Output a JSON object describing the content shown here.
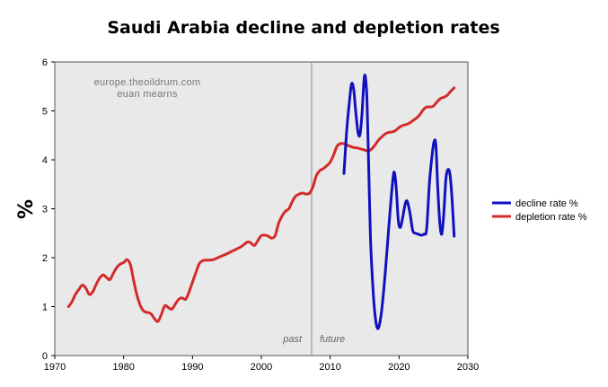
{
  "chart_data": {
    "type": "line",
    "title": "Saudi Arabia decline and depletion rates",
    "ylabel": "%",
    "xlabel": "",
    "xlim": [
      1970,
      2030
    ],
    "ylim": [
      0,
      6
    ],
    "xticks": [
      1970,
      1980,
      1990,
      2000,
      2010,
      2020,
      2030
    ],
    "yticks": [
      0,
      1,
      2,
      3,
      4,
      5,
      6
    ],
    "grid": false,
    "legend_position": "right",
    "divider_year": 2007.3,
    "annotations": {
      "source_line1": "europe.theoildrum.com",
      "source_line2": "euan mearns",
      "past": "past",
      "future": "future"
    },
    "series": [
      {
        "name": "decline rate %",
        "color": "#1010c0",
        "points": [
          [
            2012.0,
            3.72
          ],
          [
            2012.4,
            4.6
          ],
          [
            2012.8,
            5.2
          ],
          [
            2013.1,
            5.55
          ],
          [
            2013.4,
            5.45
          ],
          [
            2013.7,
            5.0
          ],
          [
            2014.0,
            4.6
          ],
          [
            2014.3,
            4.5
          ],
          [
            2014.6,
            4.9
          ],
          [
            2014.9,
            5.6
          ],
          [
            2015.1,
            5.7
          ],
          [
            2015.35,
            5.2
          ],
          [
            2015.6,
            3.8
          ],
          [
            2015.85,
            2.4
          ],
          [
            2016.2,
            1.4
          ],
          [
            2016.5,
            0.85
          ],
          [
            2016.8,
            0.58
          ],
          [
            2017.1,
            0.6
          ],
          [
            2017.5,
            0.95
          ],
          [
            2018.0,
            1.7
          ],
          [
            2018.5,
            2.6
          ],
          [
            2019.0,
            3.45
          ],
          [
            2019.3,
            3.75
          ],
          [
            2019.6,
            3.4
          ],
          [
            2019.9,
            2.75
          ],
          [
            2020.2,
            2.62
          ],
          [
            2020.5,
            2.8
          ],
          [
            2020.9,
            3.1
          ],
          [
            2021.2,
            3.15
          ],
          [
            2021.6,
            2.9
          ],
          [
            2022.0,
            2.55
          ],
          [
            2022.4,
            2.5
          ],
          [
            2022.8,
            2.48
          ],
          [
            2023.2,
            2.46
          ],
          [
            2023.6,
            2.48
          ],
          [
            2024.0,
            2.58
          ],
          [
            2024.4,
            3.5
          ],
          [
            2024.8,
            4.1
          ],
          [
            2025.1,
            4.38
          ],
          [
            2025.35,
            4.3
          ],
          [
            2025.6,
            3.5
          ],
          [
            2025.9,
            2.75
          ],
          [
            2026.2,
            2.48
          ],
          [
            2026.5,
            2.9
          ],
          [
            2026.8,
            3.6
          ],
          [
            2027.1,
            3.8
          ],
          [
            2027.4,
            3.7
          ],
          [
            2027.7,
            3.2
          ],
          [
            2028.0,
            2.44
          ]
        ]
      },
      {
        "name": "depletion rate %",
        "color": "#d42a2a",
        "points": [
          [
            1972.0,
            1.0
          ],
          [
            1972.5,
            1.1
          ],
          [
            1973.0,
            1.25
          ],
          [
            1973.5,
            1.35
          ],
          [
            1974.0,
            1.44
          ],
          [
            1974.5,
            1.38
          ],
          [
            1975.0,
            1.25
          ],
          [
            1975.5,
            1.3
          ],
          [
            1976.0,
            1.45
          ],
          [
            1976.5,
            1.58
          ],
          [
            1977.0,
            1.65
          ],
          [
            1977.5,
            1.6
          ],
          [
            1978.0,
            1.55
          ],
          [
            1978.5,
            1.68
          ],
          [
            1979.0,
            1.8
          ],
          [
            1979.5,
            1.87
          ],
          [
            1980.0,
            1.9
          ],
          [
            1980.5,
            1.96
          ],
          [
            1981.0,
            1.85
          ],
          [
            1981.5,
            1.5
          ],
          [
            1982.0,
            1.2
          ],
          [
            1982.5,
            1.0
          ],
          [
            1983.0,
            0.9
          ],
          [
            1983.5,
            0.88
          ],
          [
            1984.0,
            0.85
          ],
          [
            1984.5,
            0.75
          ],
          [
            1985.0,
            0.7
          ],
          [
            1985.5,
            0.85
          ],
          [
            1986.0,
            1.02
          ],
          [
            1986.5,
            0.98
          ],
          [
            1987.0,
            0.95
          ],
          [
            1987.5,
            1.05
          ],
          [
            1988.0,
            1.15
          ],
          [
            1988.5,
            1.18
          ],
          [
            1989.0,
            1.15
          ],
          [
            1989.5,
            1.3
          ],
          [
            1990.0,
            1.5
          ],
          [
            1990.5,
            1.7
          ],
          [
            1991.0,
            1.88
          ],
          [
            1991.5,
            1.94
          ],
          [
            1992.0,
            1.95
          ],
          [
            1993.0,
            1.96
          ],
          [
            1994.0,
            2.02
          ],
          [
            1995.0,
            2.08
          ],
          [
            1996.0,
            2.15
          ],
          [
            1997.0,
            2.22
          ],
          [
            1998.0,
            2.32
          ],
          [
            1998.5,
            2.3
          ],
          [
            1999.0,
            2.25
          ],
          [
            1999.5,
            2.35
          ],
          [
            2000.0,
            2.45
          ],
          [
            2000.5,
            2.46
          ],
          [
            2001.0,
            2.44
          ],
          [
            2001.5,
            2.4
          ],
          [
            2002.0,
            2.45
          ],
          [
            2002.5,
            2.7
          ],
          [
            2003.0,
            2.85
          ],
          [
            2003.5,
            2.95
          ],
          [
            2004.0,
            3.0
          ],
          [
            2004.5,
            3.15
          ],
          [
            2005.0,
            3.26
          ],
          [
            2005.5,
            3.3
          ],
          [
            2006.0,
            3.32
          ],
          [
            2006.5,
            3.3
          ],
          [
            2007.0,
            3.32
          ],
          [
            2007.5,
            3.45
          ],
          [
            2008.0,
            3.68
          ],
          [
            2008.5,
            3.78
          ],
          [
            2009.0,
            3.82
          ],
          [
            2009.5,
            3.88
          ],
          [
            2010.0,
            3.95
          ],
          [
            2010.5,
            4.1
          ],
          [
            2011.0,
            4.28
          ],
          [
            2011.5,
            4.33
          ],
          [
            2012.0,
            4.33
          ],
          [
            2012.5,
            4.3
          ],
          [
            2013.0,
            4.27
          ],
          [
            2013.5,
            4.25
          ],
          [
            2014.0,
            4.24
          ],
          [
            2014.5,
            4.22
          ],
          [
            2015.0,
            4.2
          ],
          [
            2015.5,
            4.18
          ],
          [
            2016.0,
            4.22
          ],
          [
            2016.5,
            4.3
          ],
          [
            2017.0,
            4.4
          ],
          [
            2017.5,
            4.47
          ],
          [
            2018.0,
            4.53
          ],
          [
            2018.5,
            4.56
          ],
          [
            2019.0,
            4.57
          ],
          [
            2019.5,
            4.6
          ],
          [
            2020.0,
            4.66
          ],
          [
            2020.5,
            4.7
          ],
          [
            2021.0,
            4.72
          ],
          [
            2021.5,
            4.75
          ],
          [
            2022.0,
            4.8
          ],
          [
            2022.5,
            4.85
          ],
          [
            2023.0,
            4.92
          ],
          [
            2023.5,
            5.02
          ],
          [
            2024.0,
            5.08
          ],
          [
            2024.5,
            5.08
          ],
          [
            2025.0,
            5.1
          ],
          [
            2025.5,
            5.18
          ],
          [
            2026.0,
            5.25
          ],
          [
            2026.5,
            5.28
          ],
          [
            2027.0,
            5.32
          ],
          [
            2027.5,
            5.4
          ],
          [
            2028.0,
            5.47
          ]
        ]
      }
    ]
  }
}
